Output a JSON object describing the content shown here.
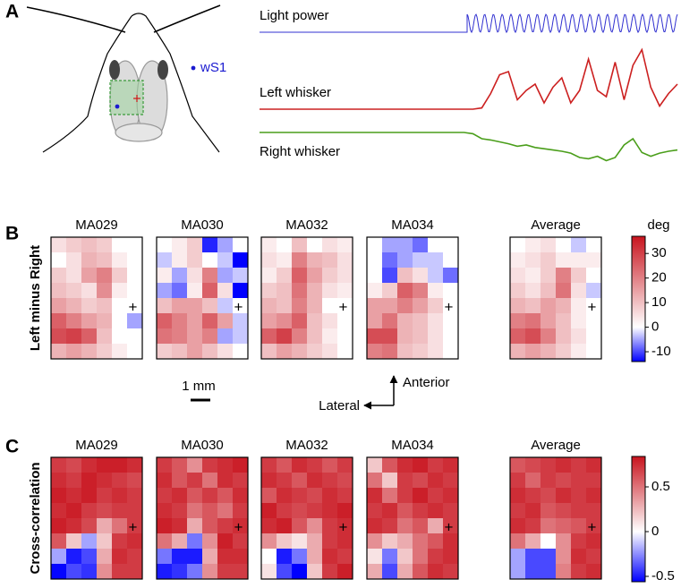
{
  "chart_data": [
    {
      "type": "line",
      "panel": "A",
      "annotation": "wS1",
      "stimulus": {
        "name": "Light power",
        "color": "#3030d0"
      },
      "series": [
        {
          "name": "Left whisker",
          "color": "#cc2020",
          "values": [
            0,
            0,
            0,
            0,
            0,
            0,
            0,
            0,
            0,
            0,
            0,
            0,
            0,
            0,
            0,
            0,
            0,
            0,
            0,
            0,
            0,
            0,
            0,
            0,
            0,
            0.02,
            0.25,
            0.55,
            0.6,
            0.15,
            0.3,
            0.4,
            0.1,
            0.35,
            0.5,
            0.1,
            0.3,
            0.8,
            0.3,
            0.2,
            0.75,
            0.15,
            0.7,
            0.95,
            0.35,
            0.05,
            0.25,
            0.4
          ]
        },
        {
          "name": "Right whisker",
          "color": "#4a9e1a",
          "values": [
            0,
            0,
            0,
            0,
            0,
            0,
            0,
            0,
            0,
            0,
            0,
            0,
            0,
            0,
            0,
            0,
            0,
            0,
            0,
            0,
            0,
            0,
            0,
            0,
            -0.02,
            -0.1,
            -0.12,
            -0.15,
            -0.18,
            -0.22,
            -0.2,
            -0.24,
            -0.26,
            -0.28,
            -0.3,
            -0.33,
            -0.4,
            -0.42,
            -0.38,
            -0.45,
            -0.4,
            -0.2,
            -0.1,
            -0.32,
            -0.38,
            -0.33,
            -0.3,
            -0.28
          ]
        }
      ]
    },
    {
      "type": "heatmap",
      "panel": "B",
      "ylabel": "Left minus Right",
      "colorbar_title": "deg",
      "clim": [
        -14,
        37
      ],
      "cticks": [
        30,
        20,
        10,
        0,
        -10
      ],
      "cmap": [
        "#0000ff",
        "#ffffff",
        "#c8141e"
      ],
      "marker": "+",
      "scale_bar": "1 mm",
      "orientation": {
        "x": "Lateral",
        "y": "Anterior"
      },
      "maps": [
        {
          "name": "MA029",
          "values": [
            [
              5,
              8,
              10,
              8,
              0,
              0
            ],
            [
              0,
              5,
              12,
              10,
              3,
              0
            ],
            [
              8,
              5,
              15,
              20,
              8,
              0
            ],
            [
              10,
              8,
              5,
              18,
              3,
              0
            ],
            [
              15,
              12,
              8,
              10,
              0,
              0
            ],
            [
              25,
              20,
              15,
              12,
              0,
              -5
            ],
            [
              28,
              30,
              25,
              10,
              0,
              0
            ],
            [
              12,
              15,
              12,
              8,
              3,
              0
            ]
          ]
        },
        {
          "name": "MA030",
          "values": [
            [
              0,
              3,
              8,
              -12,
              -5,
              0
            ],
            [
              -3,
              3,
              8,
              0,
              -3,
              -14
            ],
            [
              3,
              -5,
              5,
              20,
              -5,
              -3
            ],
            [
              -5,
              -8,
              3,
              25,
              5,
              -14
            ],
            [
              10,
              15,
              15,
              10,
              -3,
              0
            ],
            [
              25,
              20,
              15,
              25,
              15,
              -3
            ],
            [
              22,
              20,
              15,
              20,
              -5,
              -3
            ],
            [
              8,
              10,
              15,
              10,
              5,
              0
            ]
          ]
        },
        {
          "name": "MA032",
          "values": [
            [
              3,
              0,
              10,
              0,
              5,
              3
            ],
            [
              5,
              3,
              20,
              12,
              10,
              5
            ],
            [
              3,
              8,
              25,
              15,
              8,
              5
            ],
            [
              8,
              10,
              22,
              12,
              5,
              3
            ],
            [
              12,
              10,
              20,
              12,
              0,
              0
            ],
            [
              15,
              18,
              25,
              10,
              5,
              0
            ],
            [
              25,
              30,
              20,
              10,
              3,
              0
            ],
            [
              10,
              15,
              12,
              8,
              5,
              0
            ]
          ]
        },
        {
          "name": "MA034",
          "values": [
            [
              0,
              -5,
              -5,
              -8,
              0,
              0
            ],
            [
              0,
              -8,
              -5,
              -3,
              -3,
              0
            ],
            [
              0,
              -10,
              10,
              5,
              -3,
              -8
            ],
            [
              3,
              8,
              25,
              20,
              3,
              0
            ],
            [
              15,
              15,
              20,
              15,
              8,
              0
            ],
            [
              15,
              22,
              12,
              10,
              5,
              0
            ],
            [
              28,
              28,
              12,
              10,
              5,
              0
            ],
            [
              20,
              22,
              10,
              8,
              5,
              0
            ]
          ]
        },
        {
          "name": "Average",
          "values": [
            [
              0,
              3,
              5,
              0,
              -3,
              0
            ],
            [
              3,
              5,
              8,
              3,
              3,
              3
            ],
            [
              5,
              3,
              8,
              20,
              8,
              0
            ],
            [
              8,
              5,
              10,
              22,
              5,
              -3
            ],
            [
              12,
              10,
              15,
              12,
              3,
              0
            ],
            [
              20,
              22,
              15,
              10,
              3,
              0
            ],
            [
              25,
              28,
              20,
              10,
              5,
              0
            ],
            [
              12,
              15,
              12,
              8,
              3,
              0
            ]
          ]
        }
      ]
    },
    {
      "type": "heatmap",
      "panel": "C",
      "ylabel": "Cross-correlation",
      "clim": [
        -0.56,
        0.84
      ],
      "cticks": [
        0.5,
        0,
        -0.5
      ],
      "cmap": [
        "#0000ff",
        "#ffffff",
        "#c8141e"
      ],
      "marker": "+",
      "maps": [
        {
          "name": "MA029",
          "values": [
            [
              0.7,
              0.65,
              0.75,
              0.8,
              0.8,
              0.75
            ],
            [
              0.75,
              0.7,
              0.8,
              0.75,
              0.7,
              0.65
            ],
            [
              0.8,
              0.75,
              0.8,
              0.7,
              0.75,
              0.7
            ],
            [
              0.75,
              0.8,
              0.7,
              0.65,
              0.7,
              0.7
            ],
            [
              0.8,
              0.75,
              0.65,
              0.3,
              0.5,
              0.7
            ],
            [
              0.6,
              0.2,
              -0.2,
              0.2,
              0.7,
              0.75
            ],
            [
              -0.2,
              -0.5,
              -0.4,
              0.3,
              0.75,
              0.7
            ],
            [
              -0.55,
              -0.4,
              -0.45,
              0.4,
              0.7,
              0.7
            ]
          ]
        },
        {
          "name": "MA030",
          "values": [
            [
              0.7,
              0.6,
              0.4,
              0.7,
              0.75,
              0.8
            ],
            [
              0.75,
              0.6,
              0.7,
              0.5,
              0.75,
              0.7
            ],
            [
              0.7,
              0.75,
              0.6,
              0.7,
              0.6,
              0.75
            ],
            [
              0.75,
              0.7,
              0.5,
              0.6,
              0.5,
              0.7
            ],
            [
              0.8,
              0.75,
              0.3,
              0.6,
              0.7,
              0.75
            ],
            [
              0.5,
              0.3,
              -0.3,
              0.4,
              0.8,
              0.7
            ],
            [
              -0.3,
              -0.5,
              -0.5,
              0.3,
              0.75,
              0.75
            ],
            [
              -0.5,
              -0.45,
              -0.3,
              0.4,
              0.7,
              0.7
            ]
          ]
        },
        {
          "name": "MA032",
          "values": [
            [
              0.7,
              0.6,
              0.75,
              0.7,
              0.6,
              0.7
            ],
            [
              0.75,
              0.7,
              0.6,
              0.75,
              0.7,
              0.65
            ],
            [
              0.6,
              0.75,
              0.7,
              0.65,
              0.75,
              0.7
            ],
            [
              0.8,
              0.7,
              0.65,
              0.7,
              0.75,
              0.8
            ],
            [
              0.75,
              0.8,
              0.6,
              0.4,
              0.7,
              0.75
            ],
            [
              0.4,
              0.2,
              0.1,
              0.3,
              0.7,
              0.75
            ],
            [
              0.0,
              -0.5,
              -0.3,
              0.3,
              0.75,
              0.7
            ],
            [
              0.1,
              -0.4,
              -0.6,
              0.2,
              0.7,
              0.8
            ]
          ]
        },
        {
          "name": "MA034",
          "values": [
            [
              0.2,
              0.6,
              0.75,
              0.8,
              0.7,
              0.75
            ],
            [
              0.5,
              0.2,
              0.7,
              0.65,
              0.75,
              0.7
            ],
            [
              0.75,
              0.5,
              0.7,
              0.8,
              0.7,
              0.75
            ],
            [
              0.7,
              0.75,
              0.6,
              0.7,
              0.75,
              0.7
            ],
            [
              0.75,
              0.7,
              0.5,
              0.6,
              0.3,
              0.7
            ],
            [
              0.4,
              0.2,
              0.3,
              0.5,
              0.6,
              0.75
            ],
            [
              0.1,
              -0.3,
              0.2,
              0.5,
              0.7,
              0.75
            ],
            [
              0.3,
              -0.4,
              0.3,
              0.6,
              0.75,
              0.7
            ]
          ]
        },
        {
          "name": "Average",
          "values": [
            [
              0.6,
              0.65,
              0.7,
              0.75,
              0.7,
              0.75
            ],
            [
              0.7,
              0.55,
              0.7,
              0.65,
              0.7,
              0.7
            ],
            [
              0.75,
              0.7,
              0.65,
              0.75,
              0.7,
              0.75
            ],
            [
              0.7,
              0.75,
              0.6,
              0.65,
              0.7,
              0.7
            ],
            [
              0.75,
              0.7,
              0.5,
              0.55,
              0.6,
              0.7
            ],
            [
              0.5,
              0.3,
              0.0,
              0.4,
              0.7,
              0.75
            ],
            [
              -0.2,
              -0.4,
              -0.4,
              0.4,
              0.75,
              0.7
            ],
            [
              -0.2,
              -0.4,
              -0.4,
              0.45,
              0.7,
              0.75
            ]
          ]
        }
      ]
    }
  ]
}
